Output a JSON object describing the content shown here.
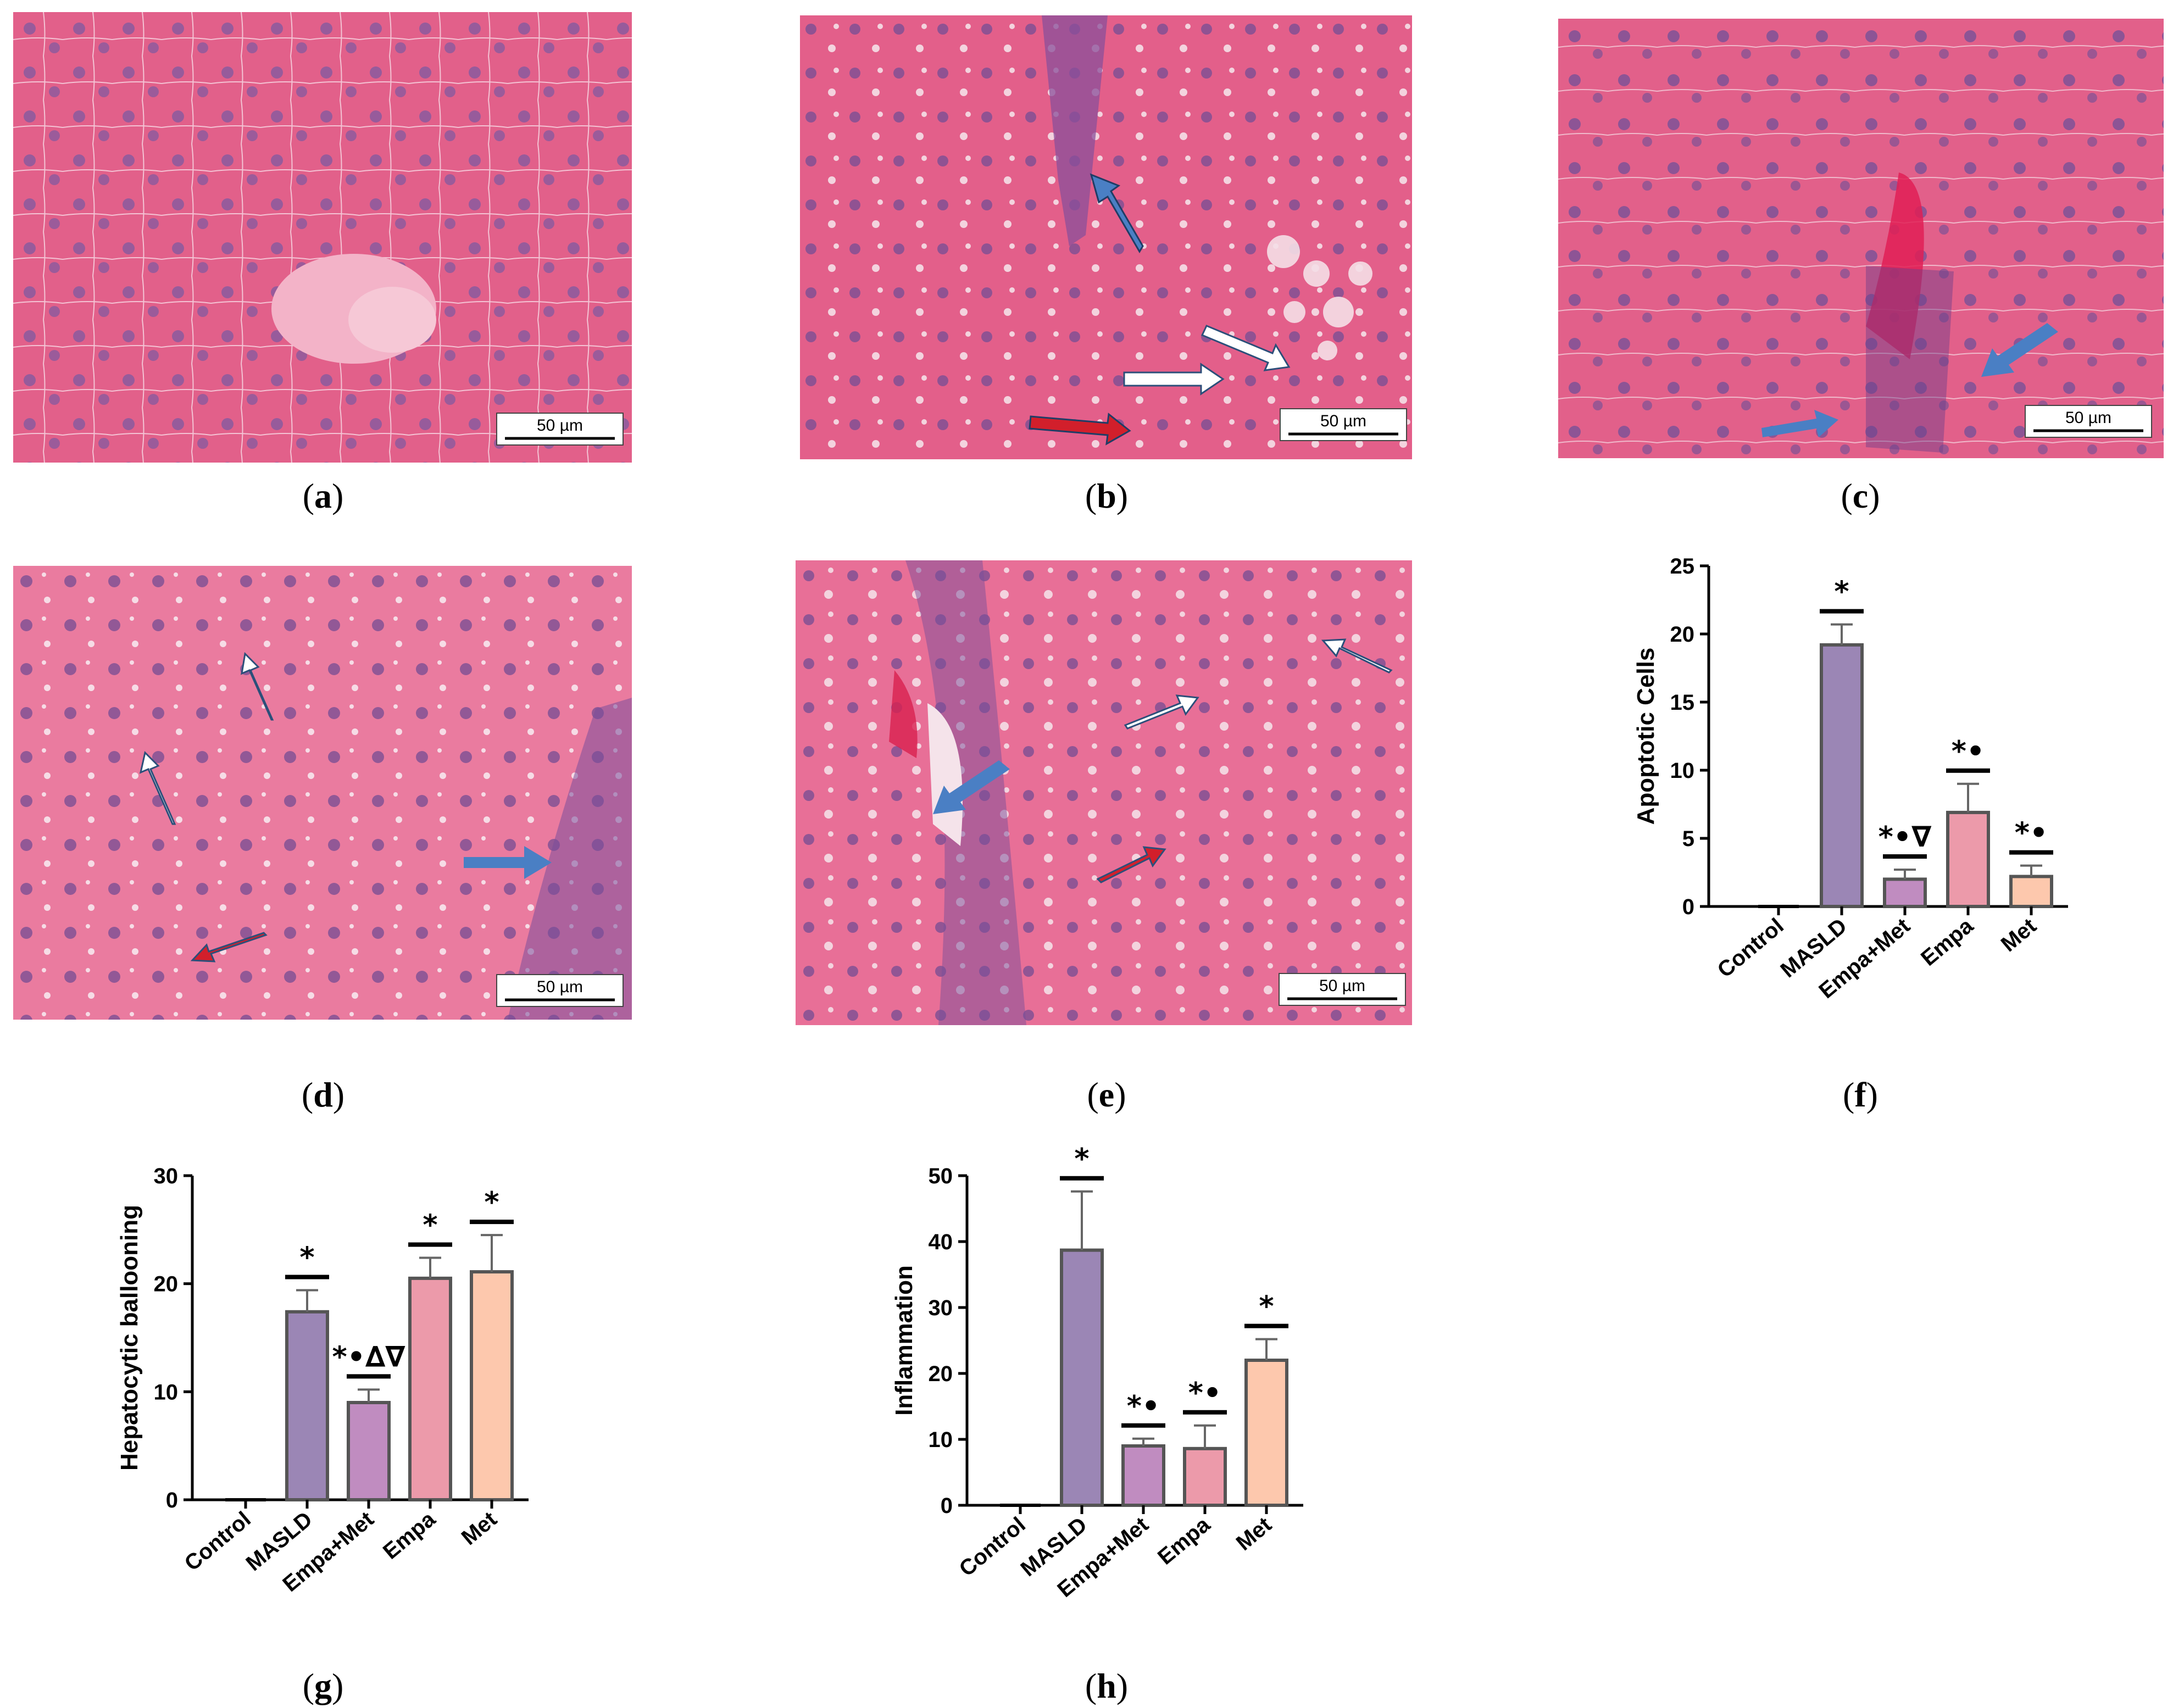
{
  "panels": [
    {
      "id": "a",
      "label": "a",
      "scale_bar": "50 µm"
    },
    {
      "id": "b",
      "label": "b",
      "scale_bar": "50 µm"
    },
    {
      "id": "c",
      "label": "c",
      "scale_bar": "50 µm"
    },
    {
      "id": "d",
      "label": "d",
      "scale_bar": "50 µm"
    },
    {
      "id": "e",
      "label": "e",
      "scale_bar": "50 µm"
    },
    {
      "id": "f",
      "label": "f"
    },
    {
      "id": "g",
      "label": "g"
    },
    {
      "id": "h",
      "label": "h"
    }
  ],
  "colors": {
    "tissue": "#e0577e",
    "tissue_light": "#ec86a6",
    "nucleus": "#7a4f8f",
    "vacuole": "#f3d3de",
    "arrow_blue": "#4a7fc4",
    "arrow_red": "#d21f2b",
    "bar_control": "#000000",
    "bar_masld": "#9b86b5",
    "bar_empamet": "#c08cc0",
    "bar_empa": "#ec9aaa",
    "bar_met": "#fdc8ad"
  },
  "chart_data": [
    {
      "id": "f",
      "type": "bar",
      "title": "",
      "ylabel": "Apoptotic Cells",
      "xlabel": "",
      "categories": [
        "Control",
        "MASLD",
        "Empa+Met",
        "Empa",
        "Met"
      ],
      "values": [
        0,
        19.2,
        2.0,
        6.9,
        2.2
      ],
      "errors": [
        0,
        1.5,
        0.7,
        2.1,
        0.8
      ],
      "significance": [
        "",
        "*",
        "*•∇",
        "*•",
        "*•"
      ],
      "ylim": [
        0,
        25
      ],
      "yticks": [
        "0",
        "5",
        "10",
        "15",
        "20",
        "25"
      ],
      "ytick_values": [
        0,
        5,
        10,
        15,
        20,
        25
      ]
    },
    {
      "id": "g",
      "type": "bar",
      "title": "",
      "ylabel": "Hepatocytic ballooning",
      "xlabel": "",
      "categories": [
        "Control",
        "MASLD",
        "Empa+Met",
        "Empa",
        "Met"
      ],
      "values": [
        0,
        17.4,
        9.0,
        20.5,
        21.1
      ],
      "errors": [
        0,
        2.0,
        1.2,
        1.9,
        3.4
      ],
      "significance": [
        "",
        "*",
        "*•∆∇",
        "*",
        "*"
      ],
      "ylim": [
        0,
        30
      ],
      "yticks": [
        "0",
        "10",
        "20",
        "30"
      ],
      "ytick_values": [
        0,
        10,
        20,
        30
      ]
    },
    {
      "id": "h",
      "type": "bar",
      "title": "",
      "ylabel": "Inflammation",
      "xlabel": "",
      "categories": [
        "Control",
        "MASLD",
        "Empa+Met",
        "Empa",
        "Met"
      ],
      "values": [
        0,
        38.7,
        9.0,
        8.6,
        22.0
      ],
      "errors": [
        0,
        8.9,
        1.1,
        3.5,
        3.2
      ],
      "significance": [
        "",
        "*",
        "*•",
        "*•",
        "*"
      ],
      "ylim": [
        0,
        50
      ],
      "yticks": [
        "0",
        "10",
        "20",
        "30",
        "40",
        "50"
      ],
      "ytick_values": [
        0,
        10,
        20,
        30,
        40,
        50
      ]
    }
  ]
}
